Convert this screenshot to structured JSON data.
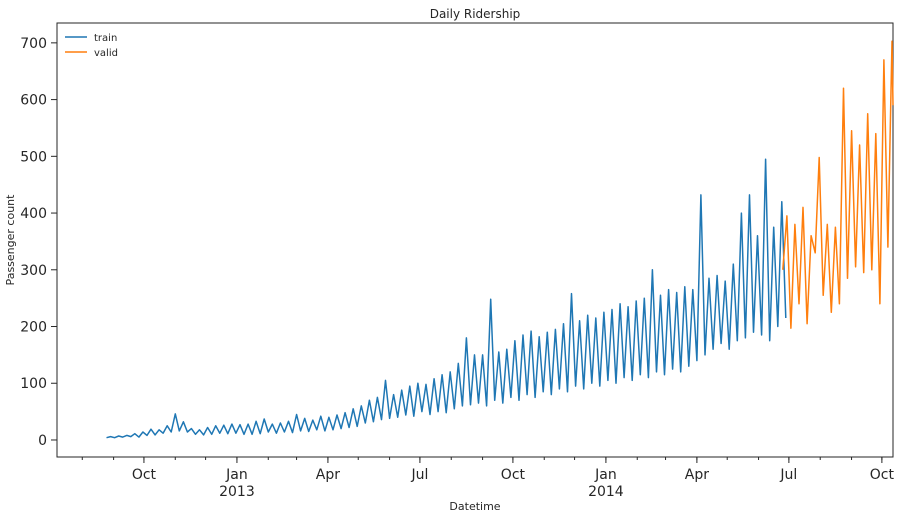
{
  "chart_data": {
    "type": "line",
    "title": "Daily Ridership",
    "xlabel": "Datetime",
    "ylabel": "Passenger count",
    "xlim": [
      "2012-07-07",
      "2014-10-12"
    ],
    "ylim": [
      -30,
      735
    ],
    "grid": false,
    "legend_position": "top-left",
    "x_ticks": [
      {
        "date": "2012-10-01",
        "label": "Oct",
        "sublabel": ""
      },
      {
        "date": "2013-01-01",
        "label": "Jan",
        "sublabel": "2013"
      },
      {
        "date": "2013-04-01",
        "label": "Apr",
        "sublabel": ""
      },
      {
        "date": "2013-07-01",
        "label": "Jul",
        "sublabel": ""
      },
      {
        "date": "2013-10-01",
        "label": "Oct",
        "sublabel": ""
      },
      {
        "date": "2014-01-01",
        "label": "Jan",
        "sublabel": "2014"
      },
      {
        "date": "2014-04-01",
        "label": "Apr",
        "sublabel": ""
      },
      {
        "date": "2014-07-01",
        "label": "Jul",
        "sublabel": ""
      },
      {
        "date": "2014-10-01",
        "label": "Oct",
        "sublabel": ""
      }
    ],
    "y_ticks": [
      0,
      100,
      200,
      300,
      400,
      500,
      600,
      700
    ],
    "series": [
      {
        "name": "train",
        "color": "#1f77b4",
        "points": [
          [
            "2012-08-25",
            4
          ],
          [
            "2012-08-29",
            6
          ],
          [
            "2012-09-02",
            4
          ],
          [
            "2012-09-06",
            7
          ],
          [
            "2012-09-10",
            5
          ],
          [
            "2012-09-14",
            8
          ],
          [
            "2012-09-18",
            6
          ],
          [
            "2012-09-22",
            11
          ],
          [
            "2012-09-26",
            5
          ],
          [
            "2012-09-30",
            14
          ],
          [
            "2012-10-04",
            8
          ],
          [
            "2012-10-08",
            19
          ],
          [
            "2012-10-12",
            9
          ],
          [
            "2012-10-16",
            18
          ],
          [
            "2012-10-20",
            12
          ],
          [
            "2012-10-24",
            25
          ],
          [
            "2012-10-28",
            14
          ],
          [
            "2012-11-01",
            46
          ],
          [
            "2012-11-05",
            16
          ],
          [
            "2012-11-09",
            32
          ],
          [
            "2012-11-13",
            14
          ],
          [
            "2012-11-17",
            20
          ],
          [
            "2012-11-21",
            10
          ],
          [
            "2012-11-25",
            18
          ],
          [
            "2012-11-29",
            9
          ],
          [
            "2012-12-03",
            22
          ],
          [
            "2012-12-07",
            10
          ],
          [
            "2012-12-11",
            25
          ],
          [
            "2012-12-15",
            12
          ],
          [
            "2012-12-19",
            26
          ],
          [
            "2012-12-23",
            11
          ],
          [
            "2012-12-27",
            28
          ],
          [
            "2012-12-31",
            12
          ],
          [
            "2013-01-04",
            27
          ],
          [
            "2013-01-08",
            10
          ],
          [
            "2013-01-12",
            28
          ],
          [
            "2013-01-16",
            10
          ],
          [
            "2013-01-20",
            33
          ],
          [
            "2013-01-24",
            11
          ],
          [
            "2013-01-28",
            37
          ],
          [
            "2013-02-01",
            14
          ],
          [
            "2013-02-05",
            28
          ],
          [
            "2013-02-09",
            12
          ],
          [
            "2013-02-13",
            30
          ],
          [
            "2013-02-17",
            14
          ],
          [
            "2013-02-21",
            33
          ],
          [
            "2013-02-25",
            13
          ],
          [
            "2013-03-01",
            45
          ],
          [
            "2013-03-05",
            16
          ],
          [
            "2013-03-09",
            38
          ],
          [
            "2013-03-13",
            15
          ],
          [
            "2013-03-17",
            35
          ],
          [
            "2013-03-21",
            18
          ],
          [
            "2013-03-25",
            42
          ],
          [
            "2013-03-29",
            16
          ],
          [
            "2013-04-02",
            40
          ],
          [
            "2013-04-06",
            18
          ],
          [
            "2013-04-10",
            44
          ],
          [
            "2013-04-14",
            20
          ],
          [
            "2013-04-18",
            48
          ],
          [
            "2013-04-22",
            22
          ],
          [
            "2013-04-26",
            55
          ],
          [
            "2013-04-30",
            24
          ],
          [
            "2013-05-04",
            60
          ],
          [
            "2013-05-08",
            30
          ],
          [
            "2013-05-12",
            70
          ],
          [
            "2013-05-16",
            32
          ],
          [
            "2013-05-20",
            75
          ],
          [
            "2013-05-24",
            36
          ],
          [
            "2013-05-28",
            105
          ],
          [
            "2013-06-01",
            38
          ],
          [
            "2013-06-05",
            80
          ],
          [
            "2013-06-09",
            40
          ],
          [
            "2013-06-13",
            88
          ],
          [
            "2013-06-17",
            44
          ],
          [
            "2013-06-21",
            95
          ],
          [
            "2013-06-25",
            42
          ],
          [
            "2013-06-29",
            100
          ],
          [
            "2013-07-03",
            50
          ],
          [
            "2013-07-07",
            98
          ],
          [
            "2013-07-11",
            45
          ],
          [
            "2013-07-15",
            108
          ],
          [
            "2013-07-19",
            50
          ],
          [
            "2013-07-23",
            115
          ],
          [
            "2013-07-27",
            48
          ],
          [
            "2013-07-31",
            120
          ],
          [
            "2013-08-04",
            55
          ],
          [
            "2013-08-08",
            135
          ],
          [
            "2013-08-12",
            60
          ],
          [
            "2013-08-16",
            180
          ],
          [
            "2013-08-20",
            62
          ],
          [
            "2013-08-24",
            150
          ],
          [
            "2013-08-28",
            65
          ],
          [
            "2013-09-01",
            150
          ],
          [
            "2013-09-05",
            60
          ],
          [
            "2013-09-09",
            248
          ],
          [
            "2013-09-13",
            70
          ],
          [
            "2013-09-17",
            155
          ],
          [
            "2013-09-21",
            65
          ],
          [
            "2013-09-25",
            160
          ],
          [
            "2013-09-29",
            75
          ],
          [
            "2013-10-03",
            175
          ],
          [
            "2013-10-07",
            70
          ],
          [
            "2013-10-11",
            185
          ],
          [
            "2013-10-15",
            80
          ],
          [
            "2013-10-19",
            192
          ],
          [
            "2013-10-23",
            75
          ],
          [
            "2013-10-27",
            182
          ],
          [
            "2013-10-31",
            85
          ],
          [
            "2013-11-04",
            190
          ],
          [
            "2013-11-08",
            80
          ],
          [
            "2013-11-12",
            195
          ],
          [
            "2013-11-16",
            90
          ],
          [
            "2013-11-20",
            205
          ],
          [
            "2013-11-24",
            85
          ],
          [
            "2013-11-28",
            258
          ],
          [
            "2013-12-02",
            95
          ],
          [
            "2013-12-06",
            210
          ],
          [
            "2013-12-10",
            90
          ],
          [
            "2013-12-14",
            220
          ],
          [
            "2013-12-18",
            100
          ],
          [
            "2013-12-22",
            215
          ],
          [
            "2013-12-26",
            95
          ],
          [
            "2013-12-30",
            225
          ],
          [
            "2014-01-03",
            105
          ],
          [
            "2014-01-07",
            230
          ],
          [
            "2014-01-11",
            100
          ],
          [
            "2014-01-15",
            240
          ],
          [
            "2014-01-19",
            110
          ],
          [
            "2014-01-23",
            235
          ],
          [
            "2014-01-27",
            105
          ],
          [
            "2014-01-31",
            245
          ],
          [
            "2014-02-04",
            115
          ],
          [
            "2014-02-08",
            250
          ],
          [
            "2014-02-12",
            110
          ],
          [
            "2014-02-16",
            300
          ],
          [
            "2014-02-20",
            120
          ],
          [
            "2014-02-24",
            255
          ],
          [
            "2014-02-28",
            115
          ],
          [
            "2014-03-04",
            265
          ],
          [
            "2014-03-08",
            125
          ],
          [
            "2014-03-12",
            260
          ],
          [
            "2014-03-16",
            120
          ],
          [
            "2014-03-20",
            270
          ],
          [
            "2014-03-24",
            130
          ],
          [
            "2014-03-28",
            265
          ],
          [
            "2014-04-01",
            140
          ],
          [
            "2014-04-05",
            432
          ],
          [
            "2014-04-09",
            150
          ],
          [
            "2014-04-13",
            285
          ],
          [
            "2014-04-17",
            160
          ],
          [
            "2014-04-21",
            290
          ],
          [
            "2014-04-25",
            170
          ],
          [
            "2014-04-29",
            280
          ],
          [
            "2014-05-03",
            160
          ],
          [
            "2014-05-07",
            310
          ],
          [
            "2014-05-11",
            175
          ],
          [
            "2014-05-15",
            400
          ],
          [
            "2014-05-19",
            180
          ],
          [
            "2014-05-23",
            432
          ],
          [
            "2014-05-27",
            190
          ],
          [
            "2014-05-31",
            360
          ],
          [
            "2014-06-04",
            185
          ],
          [
            "2014-06-08",
            495
          ],
          [
            "2014-06-12",
            175
          ],
          [
            "2014-06-16",
            375
          ],
          [
            "2014-06-20",
            200
          ],
          [
            "2014-06-24",
            420
          ],
          [
            "2014-06-28",
            215
          ]
        ]
      },
      {
        "name": "valid",
        "color": "#ff7f0e",
        "points": [
          [
            "2014-06-25",
            300
          ],
          [
            "2014-06-29",
            395
          ],
          [
            "2014-07-03",
            197
          ],
          [
            "2014-07-07",
            380
          ],
          [
            "2014-07-11",
            240
          ],
          [
            "2014-07-15",
            410
          ],
          [
            "2014-07-19",
            205
          ],
          [
            "2014-07-23",
            360
          ],
          [
            "2014-07-27",
            330
          ],
          [
            "2014-07-31",
            498
          ],
          [
            "2014-08-04",
            255
          ],
          [
            "2014-08-08",
            380
          ],
          [
            "2014-08-12",
            225
          ],
          [
            "2014-08-16",
            375
          ],
          [
            "2014-08-20",
            240
          ],
          [
            "2014-08-24",
            620
          ],
          [
            "2014-08-28",
            285
          ],
          [
            "2014-09-01",
            545
          ],
          [
            "2014-09-05",
            305
          ],
          [
            "2014-09-09",
            520
          ],
          [
            "2014-09-13",
            295
          ],
          [
            "2014-09-17",
            575
          ],
          [
            "2014-09-21",
            300
          ],
          [
            "2014-09-25",
            540
          ],
          [
            "2014-09-29",
            240
          ],
          [
            "2014-10-03",
            670
          ],
          [
            "2014-10-07",
            340
          ],
          [
            "2014-10-11",
            703
          ],
          [
            "2014-10-12",
            590
          ]
        ]
      }
    ]
  }
}
